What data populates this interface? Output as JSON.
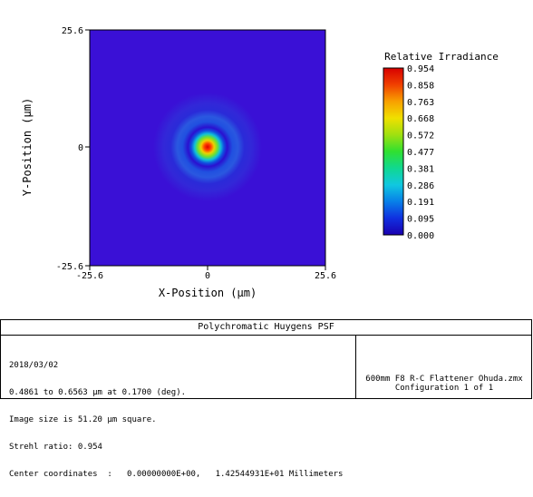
{
  "chart_data": {
    "type": "heatmap",
    "xlabel": "X-Position (µm)",
    "ylabel": "Y-Position (µm)",
    "xlim": [
      -25.6,
      25.6
    ],
    "ylim": [
      -25.6,
      25.6
    ],
    "x_ticks": [
      "-25.6",
      "0",
      "25.6"
    ],
    "y_ticks": [
      "25.6",
      "0",
      "-25.6"
    ],
    "colorbar": {
      "title": "Relative Irradiance",
      "ticks": [
        "0.954",
        "0.858",
        "0.763",
        "0.668",
        "0.572",
        "0.477",
        "0.381",
        "0.286",
        "0.191",
        "0.095",
        "0.000"
      ],
      "min": 0.0,
      "max": 0.954
    },
    "peak": {
      "x": 0,
      "y": 0,
      "value": 0.954
    }
  },
  "info": {
    "title": "Polychromatic Huygens PSF",
    "lines": [
      "2018/03/02",
      "0.4861 to 0.6563 µm at 0.1700 (deg).",
      "Image size is 51.20 µm square.",
      "Strehl ratio: 0.954",
      "Center coordinates  :   0.00000000E+00,   1.42544931E+01 Millimeters"
    ],
    "file": "600mm F8 R-C Flattener Ohuda.zmx",
    "config": "Configuration 1 of 1"
  },
  "colors": {
    "background": "#3a10d6",
    "low": "#1a00c8",
    "ring": "#2a68e0",
    "mid": "#10c8e0",
    "green": "#30e030",
    "yellow": "#f0e000",
    "red": "#d80000"
  }
}
